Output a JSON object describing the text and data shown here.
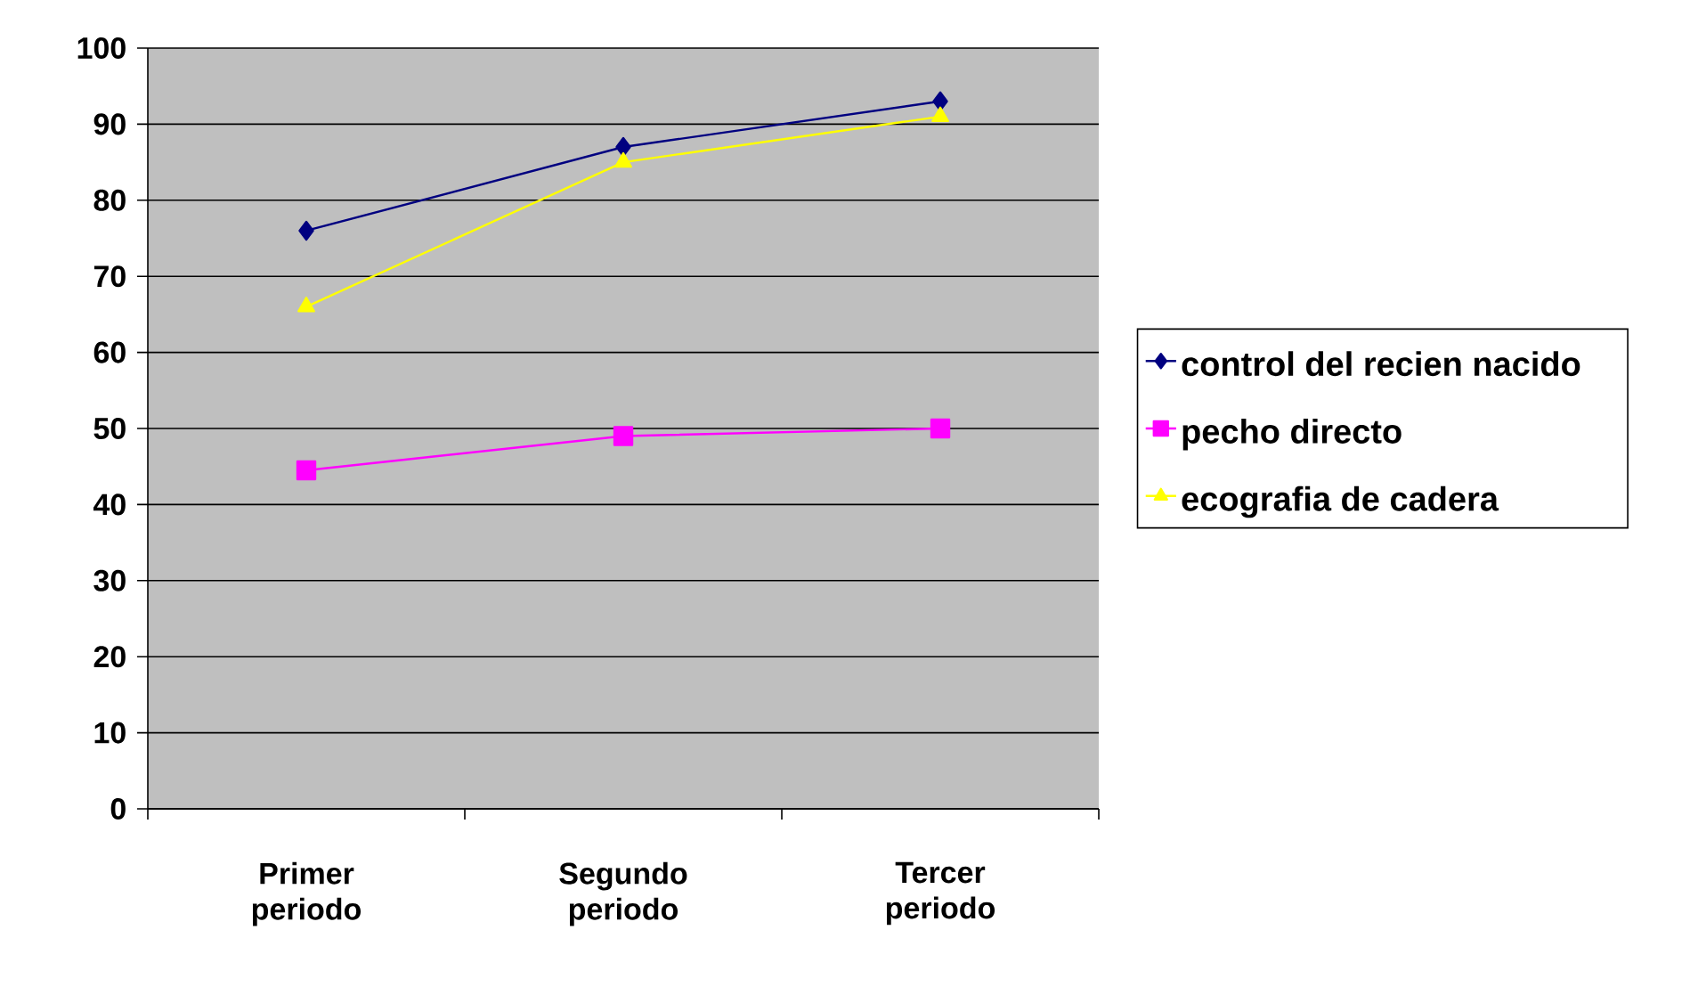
{
  "chart_data": {
    "type": "line",
    "categories": [
      "Primer periodo",
      "Segundo periodo",
      "Tercer periodo"
    ],
    "series": [
      {
        "name": "control del recien nacido",
        "color": "#000080",
        "marker": "diamond",
        "values": [
          76,
          87,
          93
        ]
      },
      {
        "name": "pecho directo",
        "color": "#ff00ff",
        "marker": "square",
        "values": [
          44.5,
          49,
          50
        ]
      },
      {
        "name": "ecografia de cadera",
        "color": "#ffff00",
        "marker": "triangle",
        "values": [
          66,
          85,
          91
        ]
      }
    ],
    "ylim": [
      0,
      100
    ],
    "yticks": [
      0,
      10,
      20,
      30,
      40,
      50,
      60,
      70,
      80,
      90,
      100
    ],
    "grid": "y",
    "legend": "right"
  }
}
